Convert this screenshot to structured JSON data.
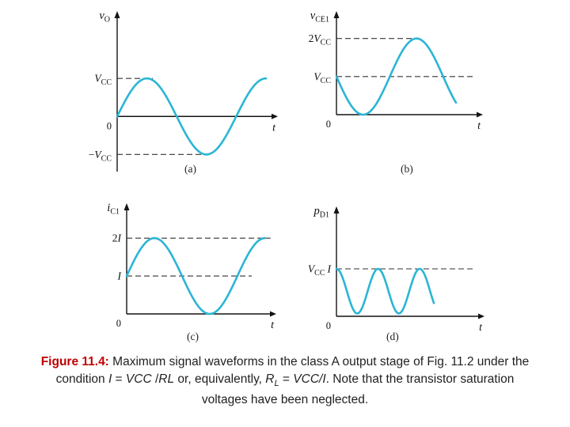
{
  "colors": {
    "waveform": "#2ab5d5",
    "axis": "#141414",
    "dashed": "#333333",
    "label_text": "#111111",
    "caption_label": "#c00000",
    "caption_text": "#1f1f1f",
    "background": "#ffffff"
  },
  "caption": {
    "label": "Figure 11.4:",
    "segments": [
      {
        "text": " Maximum signal waveforms in the class A output stage of Fig. 11.2 under the condition "
      },
      {
        "text": "I",
        "it": true
      },
      {
        "text": " = "
      },
      {
        "text": "VCC",
        "it": true
      },
      {
        "text": " /"
      },
      {
        "text": "RL",
        "it": true
      },
      {
        "text": " or, equivalently, "
      },
      {
        "text": "R",
        "it": true
      },
      {
        "text": "L",
        "it": true,
        "sub": true
      },
      {
        "text": " = "
      },
      {
        "text": "VCC/I",
        "it": true
      },
      {
        "text": ". Note that the transistor saturation voltages have been neglected."
      }
    ]
  },
  "chart_data": [
    {
      "id": "a",
      "sublabel": "(a)",
      "type": "line",
      "ylabel": "vO",
      "xlabel": "t",
      "origin_label": "0",
      "y_unit": "VCC",
      "x_unit": "signal periods",
      "xlim": [
        0,
        1.33
      ],
      "ylim": [
        -1.45,
        2.75
      ],
      "ylabel_parts": [
        {
          "t": "v",
          "it": true
        },
        {
          "t": "O",
          "sub": true
        }
      ],
      "xlabel_parts": [
        {
          "t": "t",
          "it": true
        }
      ],
      "refs": [
        {
          "value": 1,
          "extent": 0.3,
          "label": "VCC",
          "label_parts": [
            {
              "t": "V",
              "it": true
            },
            {
              "t": "CC",
              "sub": true
            }
          ]
        },
        {
          "value": -1,
          "extent": 0.76,
          "label": "−VCC",
          "label_parts": [
            {
              "t": "−"
            },
            {
              "t": "V",
              "it": true
            },
            {
              "t": "CC",
              "sub": true
            }
          ]
        }
      ],
      "waveform": {
        "kind": "sin",
        "offset": 0,
        "amplitude": 1,
        "x_end": 1.25,
        "max": 1,
        "min": -1,
        "description": "vO swings sinusoidally between +VCC and −VCC"
      }
    },
    {
      "id": "b",
      "sublabel": "(b)",
      "type": "line",
      "ylabel": "vCE1",
      "xlabel": "t",
      "origin_label": "0",
      "y_unit": "VCC",
      "x_unit": "signal periods",
      "xlim": [
        0,
        1.35
      ],
      "ylim": [
        0,
        2.7
      ],
      "ylabel_parts": [
        {
          "t": "v",
          "it": true
        },
        {
          "t": "CE1",
          "sub": true
        }
      ],
      "xlabel_parts": [
        {
          "t": "t",
          "it": true
        }
      ],
      "refs": [
        {
          "value": 2,
          "extent": 0.78,
          "label": "2VCC",
          "label_parts": [
            {
              "t": "2"
            },
            {
              "t": "V",
              "it": true
            },
            {
              "t": "CC",
              "sub": true
            }
          ]
        },
        {
          "value": 1,
          "extent": 1.3,
          "label": "VCC",
          "label_parts": [
            {
              "t": "V",
              "it": true
            },
            {
              "t": "CC",
              "sub": true
            }
          ]
        }
      ],
      "waveform": {
        "kind": "sin",
        "offset": 1,
        "amplitude": -1,
        "x_end": 1.12,
        "max": 2,
        "min": 0,
        "description": "vCE1 swings between 0 and 2VCC around VCC"
      }
    },
    {
      "id": "c",
      "sublabel": "(c)",
      "type": "line",
      "ylabel": "iC1",
      "xlabel": "t",
      "origin_label": "0",
      "y_unit": "I",
      "x_unit": "signal periods",
      "xlim": [
        0,
        1.33
      ],
      "ylim": [
        0,
        2.9
      ],
      "ylabel_parts": [
        {
          "t": "i",
          "it": true
        },
        {
          "t": "C1",
          "sub": true
        }
      ],
      "xlabel_parts": [
        {
          "t": "t",
          "it": true
        }
      ],
      "refs": [
        {
          "value": 2,
          "extent": 1.3,
          "label": "2I",
          "label_parts": [
            {
              "t": "2"
            },
            {
              "t": "I",
              "it": true
            }
          ]
        },
        {
          "value": 1,
          "extent": 1.13,
          "label": "I",
          "label_parts": [
            {
              "t": "I",
              "it": true
            }
          ]
        }
      ],
      "waveform": {
        "kind": "sin",
        "offset": 1,
        "amplitude": 1,
        "x_end": 1.25,
        "max": 2,
        "min": 0,
        "description": "iC1 swings between 0 and 2I around bias I"
      }
    },
    {
      "id": "d",
      "sublabel": "(d)",
      "type": "line",
      "ylabel": "pD1",
      "xlabel": "t",
      "origin_label": "0",
      "y_unit": "VCC·I",
      "x_unit": "signal periods",
      "xlim": [
        0,
        1.75
      ],
      "ylim": [
        0,
        2.3
      ],
      "ylabel_parts": [
        {
          "t": "p",
          "it": true
        },
        {
          "t": "D1",
          "sub": true
        }
      ],
      "xlabel_parts": [
        {
          "t": "t",
          "it": true
        }
      ],
      "refs": [
        {
          "value": 1,
          "extent": 1.65,
          "label": "VCC I",
          "label_parts": [
            {
              "t": "V",
              "it": true
            },
            {
              "t": "CC",
              "sub": true
            },
            {
              "t": "I",
              "it": true,
              "dx": 3
            }
          ]
        }
      ],
      "waveform": {
        "kind": "cos_squared",
        "offset": 0.06,
        "amplitude": 0.94,
        "x_end": 1.17,
        "max": 1,
        "min": 0,
        "description": "pD1 peaks at VCC·I and dips toward 0 at twice the signal frequency"
      }
    }
  ]
}
